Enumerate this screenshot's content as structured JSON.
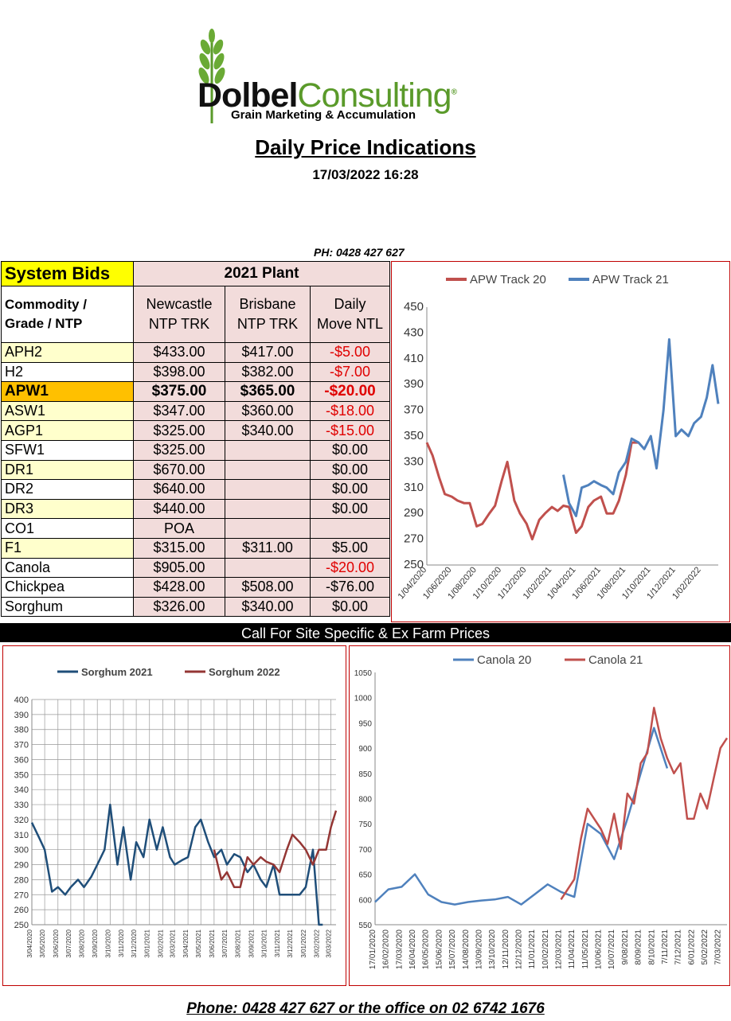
{
  "logo": {
    "brand_bold": "Dolbel",
    "brand_light": "Consulting",
    "registered": "®",
    "tagline": "Grain Marketing & Accumulation"
  },
  "title": "Daily Price Indications",
  "timestamp": "17/03/2022 16:28",
  "phone_top": "PH: 0428 427 627",
  "table": {
    "system_bids": "System Bids",
    "plant_header": "2021 Plant",
    "commodity_header": [
      "Commodity /",
      "Grade / NTP"
    ],
    "columns": [
      [
        "Newcastle",
        "NTP TRK"
      ],
      [
        "Brisbane",
        "NTP TRK"
      ],
      [
        "Daily",
        "Move NTL"
      ]
    ],
    "rows": [
      {
        "name": "APH2",
        "newcastle": "$433.00",
        "brisbane": "$417.00",
        "move": "-$5.00"
      },
      {
        "name": "H2",
        "newcastle": "$398.00",
        "brisbane": "$382.00",
        "move": "-$7.00"
      },
      {
        "name": "APW1",
        "newcastle": "$375.00",
        "brisbane": "$365.00",
        "move": "-$20.00"
      },
      {
        "name": "ASW1",
        "newcastle": "$347.00",
        "brisbane": "$360.00",
        "move": "-$18.00"
      },
      {
        "name": "AGP1",
        "newcastle": "$325.00",
        "brisbane": "$340.00",
        "move": "-$15.00"
      },
      {
        "name": "SFW1",
        "newcastle": "$325.00",
        "brisbane": "",
        "move": "$0.00"
      },
      {
        "name": "DR1",
        "newcastle": "$670.00",
        "brisbane": "",
        "move": "$0.00"
      },
      {
        "name": "DR2",
        "newcastle": "$640.00",
        "brisbane": "",
        "move": "$0.00"
      },
      {
        "name": "DR3",
        "newcastle": "$440.00",
        "brisbane": "",
        "move": "$0.00"
      },
      {
        "name": "CO1",
        "newcastle": "POA",
        "brisbane": "",
        "move": ""
      },
      {
        "name": "F1",
        "newcastle": "$315.00",
        "brisbane": "$311.00",
        "move": "$5.00"
      },
      {
        "name": "Canola",
        "newcastle": "$905.00",
        "brisbane": "",
        "move": "-$20.00"
      },
      {
        "name": "Chickpea",
        "newcastle": "$428.00",
        "brisbane": "$508.00",
        "move": "-$76.00"
      },
      {
        "name": "Sorghum",
        "newcastle": "$326.00",
        "brisbane": "$340.00",
        "move": "$0.00"
      }
    ]
  },
  "call_bar": "Call For Site Specific & Ex Farm Prices",
  "footer": "Phone: 0428 427 627 or the office on 02 6742 1676",
  "colors": {
    "red_series": "#c0504d",
    "blue_series": "#4f81bd",
    "navy_series": "#1f4e79",
    "maroon_series": "#943634",
    "table_pink": "#f2dcdb",
    "table_yellow": "#ffffcc",
    "highlight": "#ffc000",
    "negative": "#e00000",
    "logo_green": "#5a9a2a"
  },
  "chart_data": [
    {
      "type": "line",
      "series": [
        {
          "name": "APW Track 20",
          "color": "#c0504d",
          "x": [
            "1/04/2020",
            "15/04/2020",
            "1/05/2020",
            "15/05/2020",
            "1/06/2020",
            "15/06/2020",
            "1/07/2020",
            "15/07/2020",
            "1/08/2020",
            "15/08/2020",
            "1/09/2020",
            "15/09/2020",
            "1/10/2020",
            "15/10/2020",
            "1/11/2020",
            "15/11/2020",
            "1/12/2020",
            "15/12/2020",
            "1/01/2021",
            "15/01/2021",
            "1/02/2021",
            "15/02/2021",
            "1/03/2021",
            "15/03/2021",
            "1/04/2021",
            "15/04/2021",
            "1/05/2021",
            "15/05/2021",
            "1/06/2021",
            "15/06/2021",
            "1/07/2021",
            "15/07/2021",
            "1/08/2021",
            "15/08/2021",
            "1/09/2021"
          ],
          "values": [
            345,
            335,
            318,
            305,
            303,
            300,
            298,
            298,
            280,
            282,
            290,
            296,
            315,
            330,
            300,
            290,
            282,
            270,
            285,
            290,
            295,
            292,
            296,
            295,
            275,
            280,
            295,
            300,
            303,
            290,
            290,
            300,
            320,
            345,
            345
          ]
        },
        {
          "name": "APW Track 21",
          "color": "#4f81bd",
          "x": [
            "1/03/2021",
            "15/03/2021",
            "1/04/2021",
            "15/04/2021",
            "1/05/2021",
            "15/05/2021",
            "1/06/2021",
            "15/06/2021",
            "1/07/2021",
            "15/07/2021",
            "1/08/2021",
            "15/08/2021",
            "1/09/2021",
            "15/09/2021",
            "1/10/2021",
            "15/10/2021",
            "1/11/2021",
            "15/11/2021",
            "1/12/2021",
            "15/12/2021",
            "1/01/2022",
            "15/01/2022",
            "1/02/2022",
            "15/02/2022",
            "1/03/2022",
            "15/03/2022"
          ],
          "values": [
            320,
            298,
            288,
            310,
            312,
            315,
            312,
            310,
            305,
            322,
            330,
            348,
            345,
            340,
            350,
            325,
            370,
            425,
            350,
            355,
            350,
            360,
            365,
            380,
            405,
            375
          ]
        }
      ],
      "ylim": [
        250,
        450
      ],
      "yticks": [
        250,
        270,
        290,
        310,
        330,
        350,
        370,
        390,
        410,
        430,
        450
      ],
      "xticks": [
        "1/04/2020",
        "1/06/2020",
        "1/08/2020",
        "1/10/2020",
        "1/12/2020",
        "1/02/2021",
        "1/04/2021",
        "1/06/2021",
        "1/08/2021",
        "1/10/2021",
        "1/12/2021",
        "1/02/2022"
      ],
      "legend": "top"
    },
    {
      "type": "line",
      "series": [
        {
          "name": "Sorghum 2021",
          "color": "#1f4e79",
          "x": [
            "3/04/2020",
            "20/04/2020",
            "3/05/2020",
            "20/05/2020",
            "3/06/2020",
            "20/06/2020",
            "3/07/2020",
            "20/07/2020",
            "3/08/2020",
            "20/08/2020",
            "3/09/2020",
            "20/09/2020",
            "3/10/2020",
            "20/10/2020",
            "3/11/2020",
            "20/11/2020",
            "3/12/2020",
            "20/12/2020",
            "3/01/2021",
            "20/01/2021",
            "3/02/2021",
            "20/02/2021",
            "3/03/2021",
            "20/03/2021",
            "3/04/2021",
            "20/04/2021",
            "3/05/2021",
            "20/05/2021",
            "3/06/2021",
            "20/06/2021",
            "3/07/2021",
            "20/07/2021",
            "3/08/2021",
            "20/08/2021",
            "3/09/2021",
            "20/09/2021",
            "3/10/2021",
            "20/10/2021",
            "3/11/2021",
            "20/11/2021",
            "3/12/2021",
            "20/12/2021",
            "3/01/2022",
            "20/01/2022",
            "3/02/2022",
            "12/02/2022"
          ],
          "values": [
            318,
            308,
            300,
            272,
            275,
            270,
            275,
            280,
            275,
            282,
            290,
            300,
            330,
            290,
            315,
            280,
            305,
            295,
            320,
            300,
            315,
            295,
            290,
            293,
            295,
            315,
            320,
            305,
            295,
            300,
            290,
            297,
            295,
            285,
            290,
            280,
            275,
            290,
            270,
            270,
            270,
            270,
            275,
            300,
            250,
            250
          ]
        },
        {
          "name": "Sorghum 2022",
          "color": "#943634",
          "x": [
            "3/06/2021",
            "20/06/2021",
            "3/07/2021",
            "20/07/2021",
            "3/08/2021",
            "20/08/2021",
            "3/09/2021",
            "20/09/2021",
            "3/10/2021",
            "20/10/2021",
            "3/11/2021",
            "20/11/2021",
            "3/12/2021",
            "20/12/2021",
            "3/01/2022",
            "20/01/2022",
            "3/02/2022",
            "20/02/2022",
            "3/03/2022",
            "15/03/2022"
          ],
          "values": [
            300,
            280,
            285,
            275,
            275,
            295,
            290,
            295,
            292,
            290,
            285,
            300,
            310,
            305,
            300,
            290,
            300,
            300,
            315,
            326
          ]
        }
      ],
      "ylim": [
        250,
        400
      ],
      "yticks": [
        250,
        260,
        270,
        280,
        290,
        300,
        310,
        320,
        330,
        340,
        350,
        360,
        370,
        380,
        390,
        400
      ],
      "xticks": [
        "3/04/2020",
        "3/05/2020",
        "3/06/2020",
        "3/07/2020",
        "3/08/2020",
        "3/09/2020",
        "3/10/2020",
        "3/11/2020",
        "3/12/2020",
        "3/01/2021",
        "3/02/2021",
        "3/03/2021",
        "3/04/2021",
        "3/05/2021",
        "3/06/2021",
        "3/07/2021",
        "3/08/2021",
        "3/09/2021",
        "3/10/2021",
        "3/11/2021",
        "3/12/2021",
        "3/01/2022",
        "3/02/2022",
        "3/03/2022"
      ],
      "grid": true,
      "legend": "top"
    },
    {
      "type": "line",
      "series": [
        {
          "name": "Canola 20",
          "color": "#4f81bd",
          "x": [
            "17/01/2020",
            "16/02/2020",
            "17/03/2020",
            "16/04/2020",
            "16/05/2020",
            "15/06/2020",
            "15/07/2020",
            "14/08/2020",
            "13/09/2020",
            "13/10/2020",
            "12/11/2020",
            "12/12/2020",
            "11/01/2021",
            "10/02/2021",
            "12/03/2021",
            "11/04/2021",
            "11/05/2021",
            "10/06/2021",
            "10/07/2021",
            "9/08/2021",
            "8/09/2021",
            "8/10/2021",
            "7/11/2021"
          ],
          "values": [
            595,
            620,
            625,
            650,
            610,
            595,
            590,
            595,
            598,
            600,
            605,
            590,
            610,
            630,
            615,
            605,
            750,
            730,
            680,
            760,
            850,
            940,
            860
          ]
        },
        {
          "name": "Canola 21",
          "color": "#c0504d",
          "x": [
            "12/03/2021",
            "11/04/2021",
            "26/04/2021",
            "11/05/2021",
            "26/05/2021",
            "10/06/2021",
            "25/06/2021",
            "10/07/2021",
            "25/07/2021",
            "9/08/2021",
            "24/08/2021",
            "8/09/2021",
            "23/09/2021",
            "8/10/2021",
            "23/10/2021",
            "7/11/2021",
            "22/11/2021",
            "7/12/2021",
            "22/12/2021",
            "6/01/2022",
            "21/01/2022",
            "5/02/2022",
            "20/02/2022",
            "7/03/2022",
            "22/03/2022"
          ],
          "values": [
            600,
            640,
            720,
            780,
            760,
            740,
            710,
            770,
            700,
            810,
            790,
            870,
            890,
            980,
            920,
            880,
            850,
            870,
            760,
            760,
            810,
            780,
            840,
            900,
            920
          ]
        }
      ],
      "ylim": [
        550,
        1050
      ],
      "yticks": [
        550,
        600,
        650,
        700,
        750,
        800,
        850,
        900,
        950,
        1000,
        1050
      ],
      "xticks": [
        "17/01/2020",
        "16/02/2020",
        "17/03/2020",
        "16/04/2020",
        "16/05/2020",
        "15/06/2020",
        "15/07/2020",
        "14/08/2020",
        "13/09/2020",
        "13/10/2020",
        "12/11/2020",
        "12/12/2020",
        "11/01/2021",
        "10/02/2021",
        "12/03/2021",
        "11/04/2021",
        "11/05/2021",
        "10/06/2021",
        "10/07/2021",
        "9/08/2021",
        "8/09/2021",
        "8/10/2021",
        "7/11/2021",
        "7/12/2021",
        "6/01/2022",
        "5/02/2022",
        "7/03/2022"
      ],
      "legend": "top"
    }
  ]
}
